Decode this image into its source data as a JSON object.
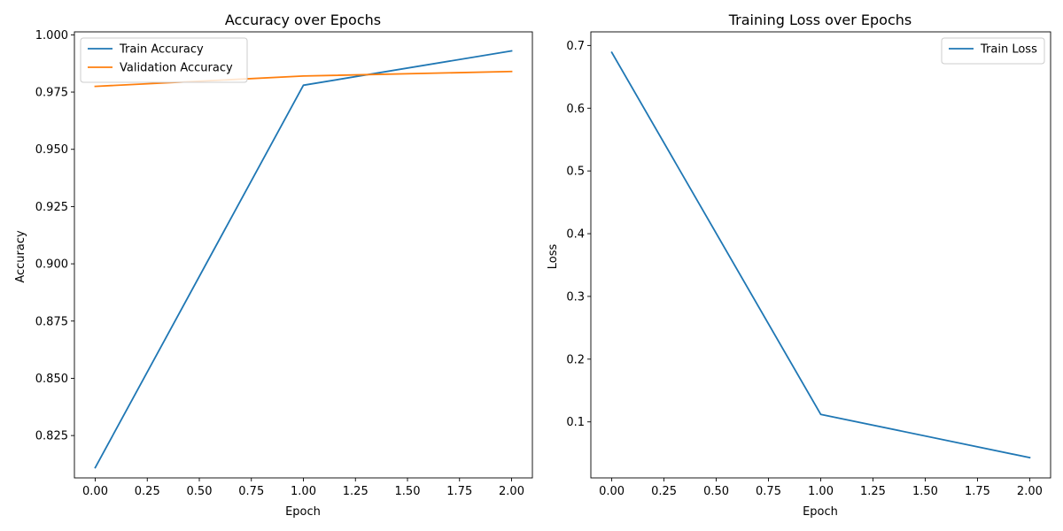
{
  "chart_data": [
    {
      "type": "line",
      "title": "Accuracy over Epochs",
      "xlabel": "Epoch",
      "ylabel": "Accuracy",
      "xlim": [
        -0.1,
        2.1
      ],
      "ylim": [
        0.8065,
        1.0013
      ],
      "xticks": [
        "0.00",
        "0.25",
        "0.50",
        "0.75",
        "1.00",
        "1.25",
        "1.50",
        "1.75",
        "2.00"
      ],
      "yticks": [
        "0.825",
        "0.850",
        "0.875",
        "0.900",
        "0.925",
        "0.950",
        "0.975",
        "1.000"
      ],
      "grid": false,
      "legend": "upper left",
      "x": [
        0,
        1,
        2
      ],
      "series": [
        {
          "name": "Train Accuracy",
          "color": "#1f77b4",
          "values": [
            0.811,
            0.978,
            0.993
          ]
        },
        {
          "name": "Validation Accuracy",
          "color": "#ff7f0e",
          "values": [
            0.9775,
            0.982,
            0.984
          ]
        }
      ]
    },
    {
      "type": "line",
      "title": "Training Loss over Epochs",
      "xlabel": "Epoch",
      "ylabel": "Loss",
      "xlim": [
        -0.1,
        2.1
      ],
      "ylim": [
        0.0107,
        0.7217
      ],
      "xticks": [
        "0.00",
        "0.25",
        "0.50",
        "0.75",
        "1.00",
        "1.25",
        "1.50",
        "1.75",
        "2.00"
      ],
      "yticks": [
        "0.1",
        "0.2",
        "0.3",
        "0.4",
        "0.5",
        "0.6",
        "0.7"
      ],
      "grid": false,
      "legend": "upper right",
      "x": [
        0,
        1,
        2
      ],
      "series": [
        {
          "name": "Train Loss",
          "color": "#1f77b4",
          "values": [
            0.689,
            0.112,
            0.043
          ]
        }
      ]
    }
  ]
}
